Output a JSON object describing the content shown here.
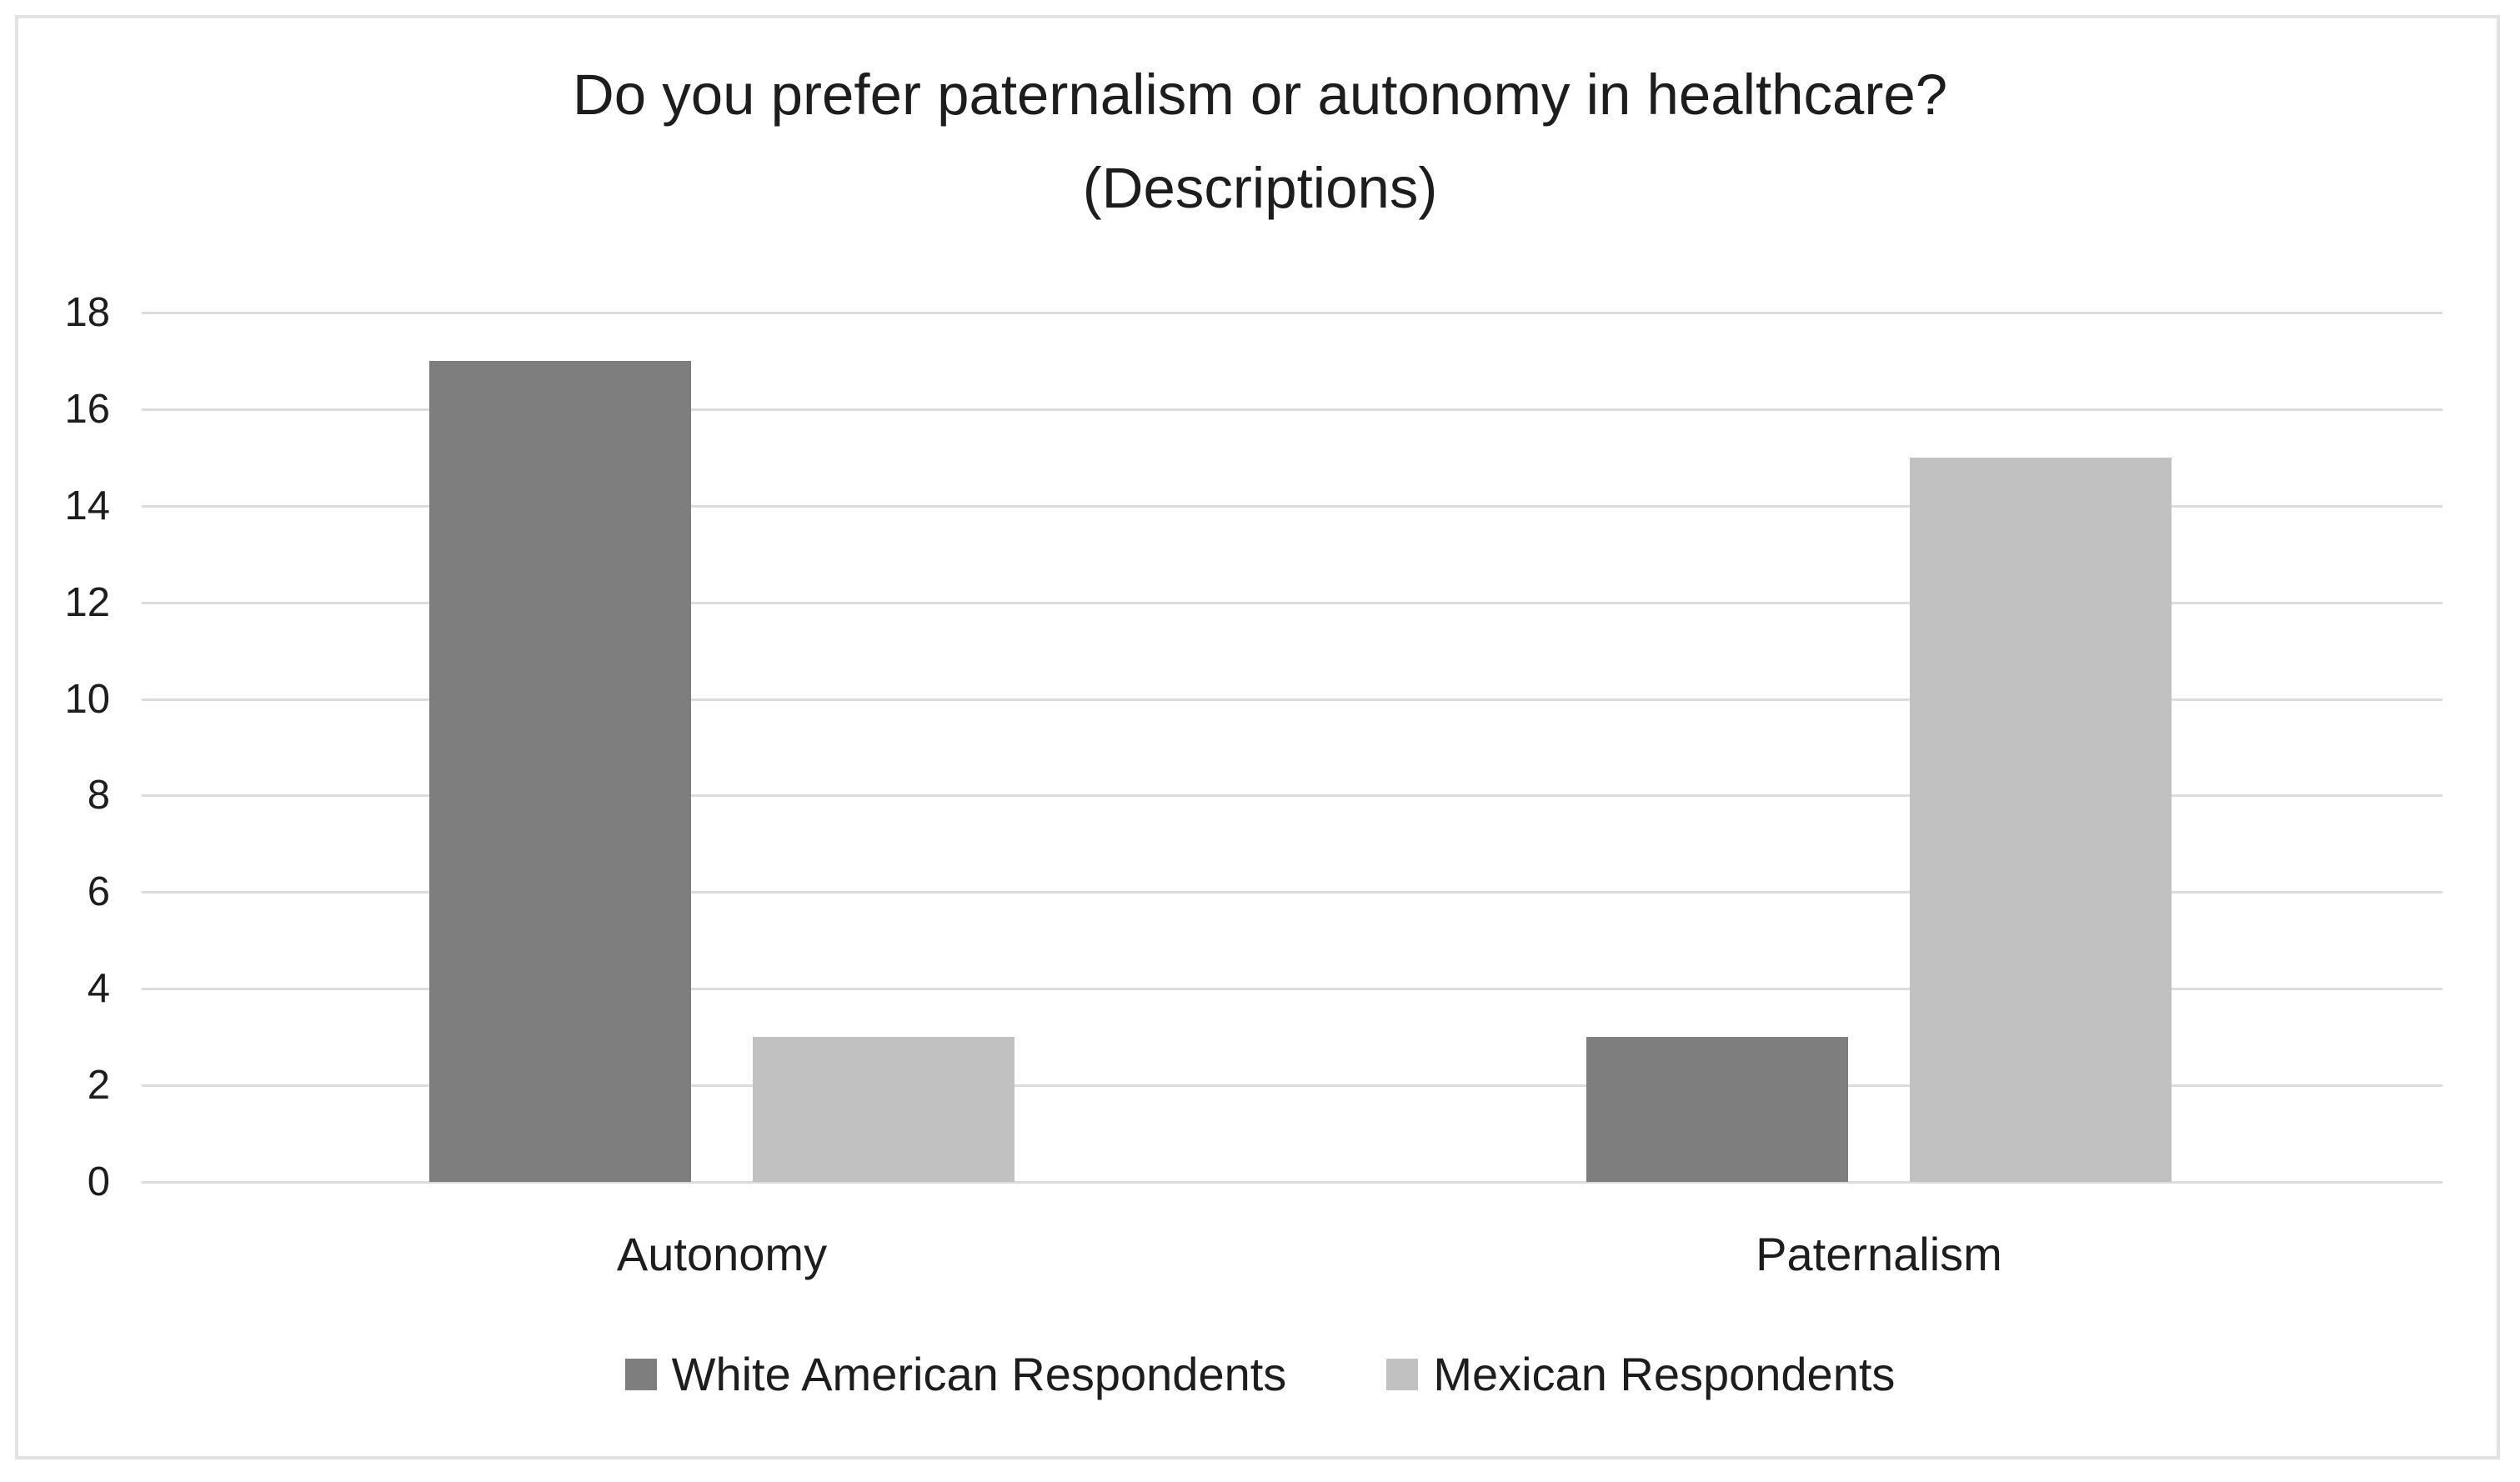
{
  "chart_data": {
    "type": "bar",
    "title": "Do you prefer paternalism or autonomy in healthcare?",
    "subtitle": "(Descriptions)",
    "categories": [
      "Autonomy",
      "Paternalism"
    ],
    "series": [
      {
        "name": "White American Respondents",
        "color": "#7e7e7e",
        "values": [
          17,
          3
        ]
      },
      {
        "name": "Mexican Respondents",
        "color": "#c1c1c1",
        "values": [
          3,
          15
        ]
      }
    ],
    "ylim": [
      0,
      18
    ],
    "ytick_step": 2,
    "yticks": [
      "0",
      "2",
      "4",
      "6",
      "8",
      "10",
      "12",
      "14",
      "16",
      "18"
    ],
    "grid": true,
    "legend_position": "bottom",
    "xlabel": "",
    "ylabel": ""
  },
  "colors": {
    "text": "#1d1d1d",
    "gridline": "#dcdcdc",
    "frame_border": "#e2e2e2",
    "background": "#ffffff"
  }
}
